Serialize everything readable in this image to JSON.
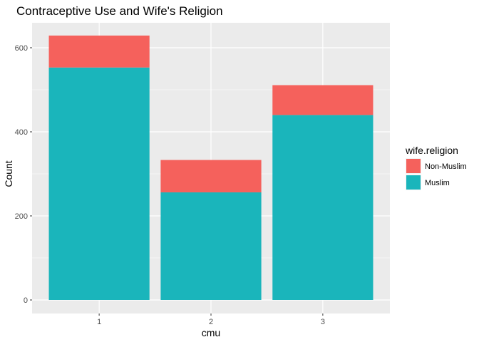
{
  "chart_data": {
    "type": "bar",
    "stacked": true,
    "title": "Contraceptive Use and Wife's Religion",
    "xlabel": "cmu",
    "ylabel": "Count",
    "categories": [
      "1",
      "2",
      "3"
    ],
    "series": [
      {
        "name": "Muslim",
        "values": [
          553,
          256,
          440
        ],
        "color": "#1ab5bb"
      },
      {
        "name": "Non-Muslim",
        "values": [
          76,
          77,
          71
        ],
        "color": "#f5615c"
      }
    ],
    "ylim": [
      0,
      680
    ],
    "yticks": [
      0,
      200,
      400,
      600
    ],
    "grid": true,
    "legend": {
      "title": "wife.religion",
      "placement": "right",
      "entries": [
        {
          "label": "Non-Muslim",
          "color": "#f5615c"
        },
        {
          "label": "Muslim",
          "color": "#1ab5bb"
        }
      ]
    }
  }
}
